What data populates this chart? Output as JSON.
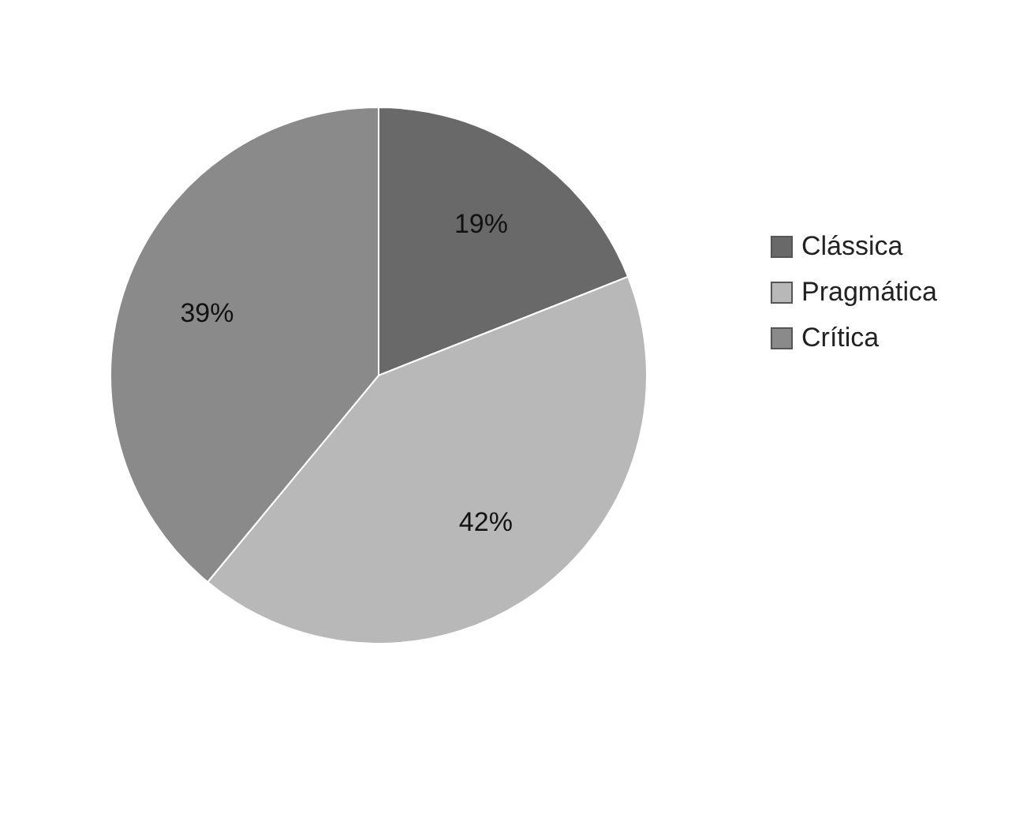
{
  "chart_data": {
    "type": "pie",
    "categories": [
      "Clássica",
      "Pragmática",
      "Crítica"
    ],
    "values": [
      19,
      42,
      39
    ],
    "colors": [
      "#696969",
      "#b8b8b8",
      "#8a8a8a"
    ],
    "value_labels": [
      "19%",
      "42%",
      "39%"
    ],
    "legend": "right"
  }
}
